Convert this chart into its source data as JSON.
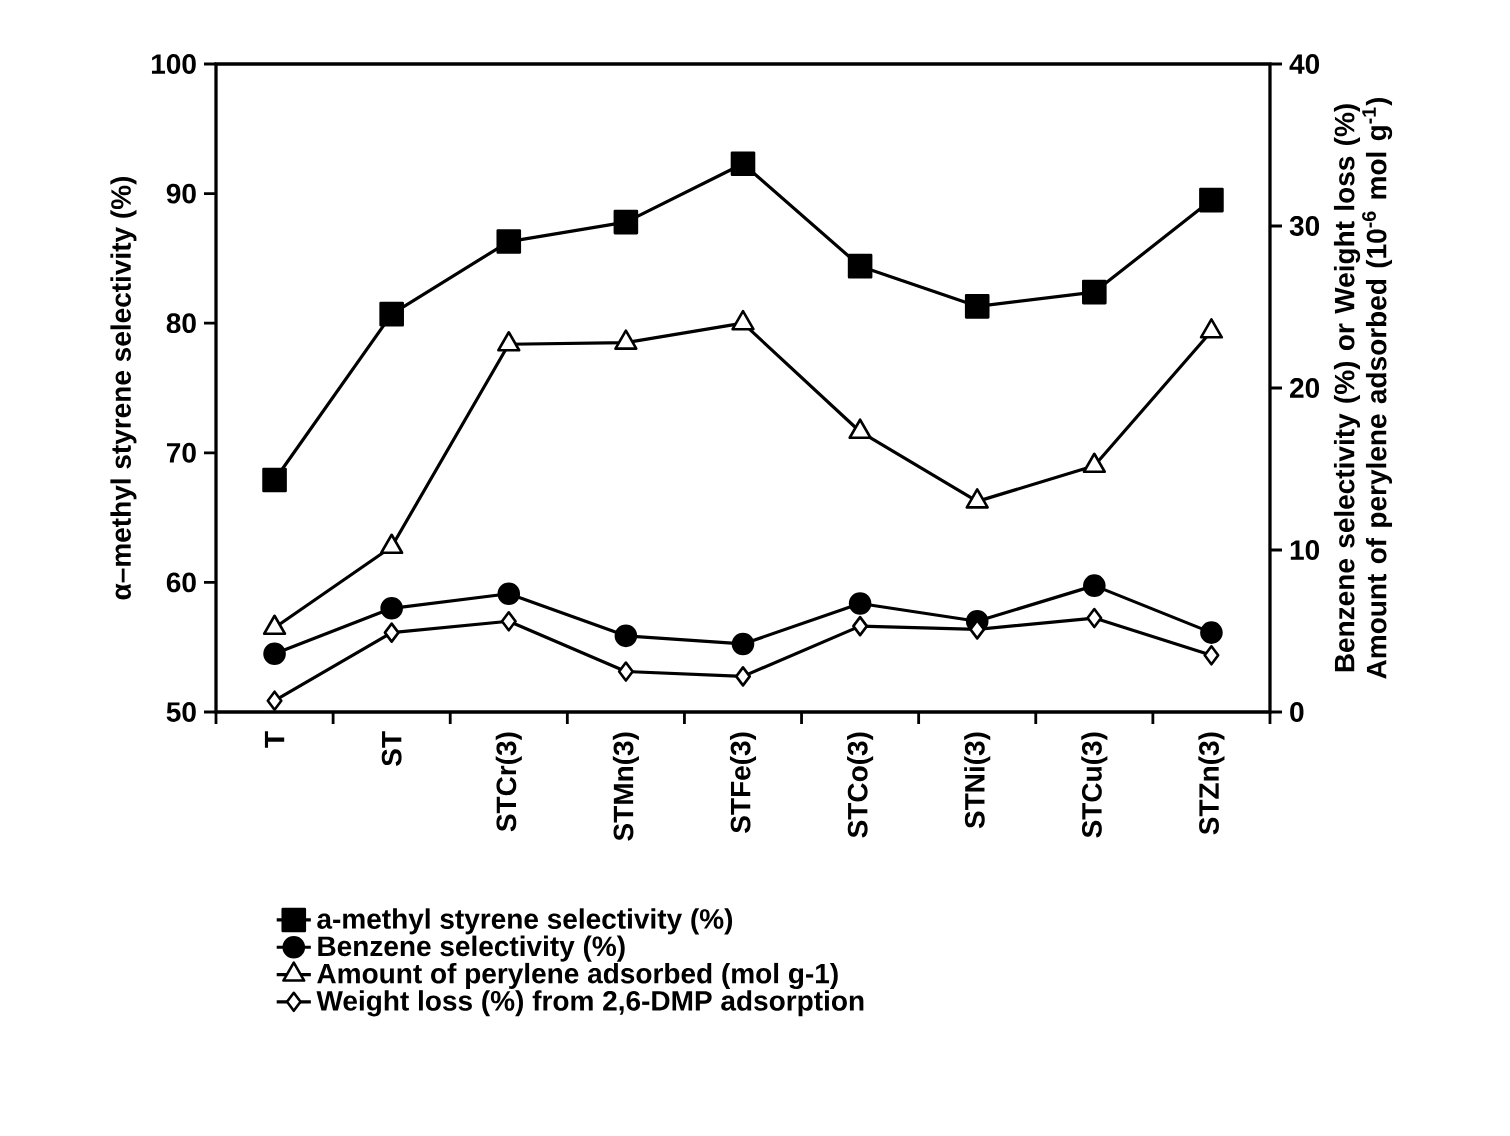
{
  "chart_data": {
    "type": "line",
    "categories": [
      "T",
      "ST",
      "STCr(3)",
      "STMn(3)",
      "STFe(3)",
      "STCo(3)",
      "STNi(3)",
      "STCu(3)",
      "STZn(3)"
    ],
    "ylabel": "α–methyl styrene selectivity (%)",
    "y2label": "Benzene selectivity (%) or Weight loss (%) Amount of perylene adsorbed (10$^{-6}$ mol g$^{-1}$)",
    "ylim": [
      50,
      100
    ],
    "yticks": [
      50,
      60,
      70,
      80,
      90,
      100
    ],
    "y2lim": [
      0,
      40
    ],
    "y2ticks": [
      0,
      10,
      20,
      30,
      40
    ],
    "legend": "bottom",
    "grid": false,
    "line_style": "solid",
    "series": [
      {
        "name": "a-methyl styrene selectivity (%)",
        "color": "#000000",
        "marker": "square",
        "values": [
          67.9,
          80.7,
          86.3,
          87.8,
          92.3,
          84.4,
          81.3,
          82.4,
          89.5
        ]
      },
      {
        "name": "Benzene selectivity (%)",
        "color": "#000000",
        "marker": "circle",
        "axis": "y2",
        "values": [
          3.6,
          6.4,
          7.3,
          4.7,
          4.2,
          6.7,
          5.6,
          7.8,
          4.9
        ]
      },
      {
        "name": "Amount of perylene adsorbed (mol g-1)",
        "color": "#000000",
        "marker": "triangle",
        "axis": "y2",
        "values": [
          5.2,
          10.2,
          22.7,
          22.8,
          24.0,
          17.3,
          13.0,
          15.2,
          23.5
        ]
      },
      {
        "name": "Weight loss (%) from 2,6-DMP adsorption",
        "color": "#000000",
        "marker": "diamond",
        "axis": "y2",
        "values": [
          0.7,
          4.9,
          5.6,
          2.5,
          2.2,
          5.3,
          5.1,
          5.8,
          3.5
        ]
      }
    ]
  }
}
